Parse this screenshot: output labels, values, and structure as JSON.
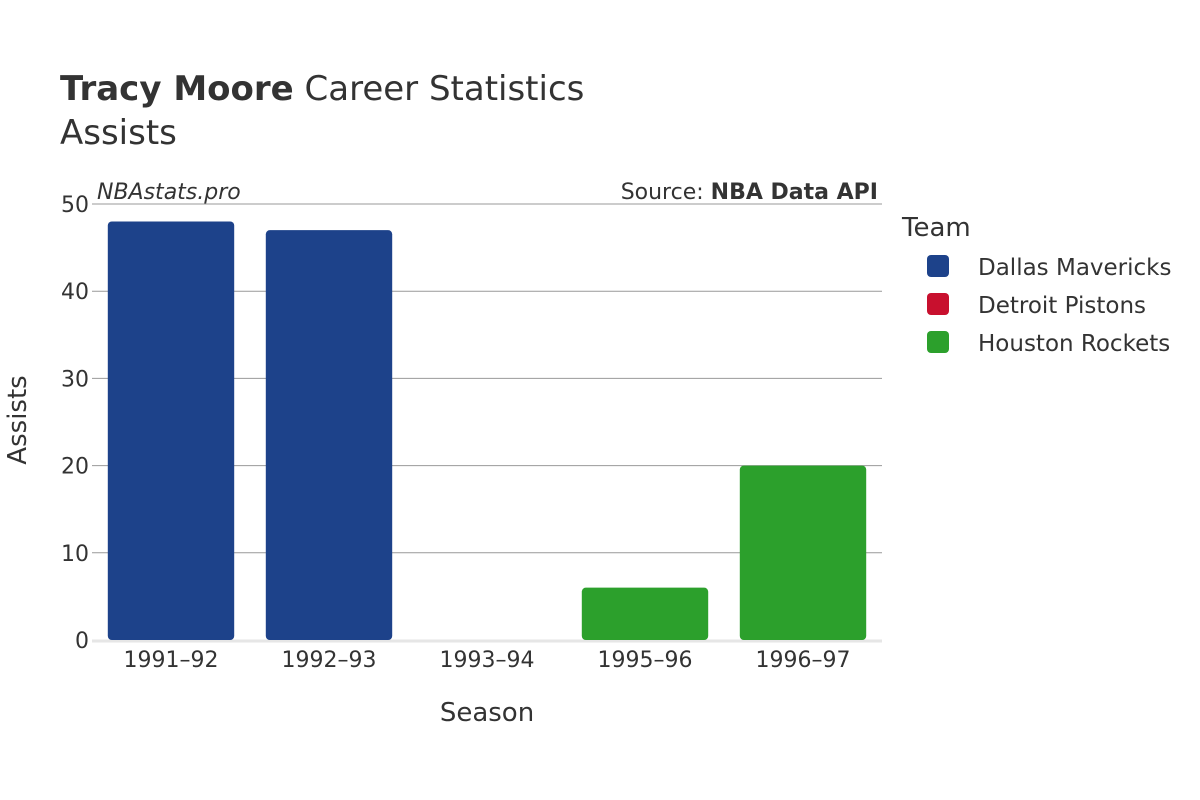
{
  "header": {
    "player_name": "Tracy Moore",
    "title_suffix": " Career Statistics",
    "subtitle": "Assists"
  },
  "watermark": "NBAstats.pro",
  "source": {
    "prefix": "Source: ",
    "name": "NBA Data API"
  },
  "legend": {
    "title": "Team",
    "items": [
      {
        "label": "Dallas Mavericks",
        "color": "#1d428a"
      },
      {
        "label": "Detroit Pistons",
        "color": "#c8102e"
      },
      {
        "label": "Houston Rockets",
        "color": "#2ca02c"
      }
    ]
  },
  "chart_data": {
    "type": "bar",
    "title": "Tracy Moore Career Statistics",
    "subtitle": "Assists",
    "xlabel": "Season",
    "ylabel": "Assists",
    "ylim": [
      0,
      50
    ],
    "yticks": [
      0,
      10,
      20,
      30,
      40,
      50
    ],
    "grid": true,
    "legend_position": "right",
    "categories": [
      "1991–92",
      "1992–93",
      "1993–94",
      "1995–96",
      "1996–97"
    ],
    "series": [
      {
        "name": "Dallas Mavericks",
        "color": "#1d428a",
        "values": [
          48,
          47,
          null,
          null,
          null
        ]
      },
      {
        "name": "Detroit Pistons",
        "color": "#c8102e",
        "values": [
          null,
          null,
          0,
          null,
          null
        ]
      },
      {
        "name": "Houston Rockets",
        "color": "#2ca02c",
        "values": [
          null,
          null,
          null,
          6,
          20
        ]
      }
    ]
  }
}
